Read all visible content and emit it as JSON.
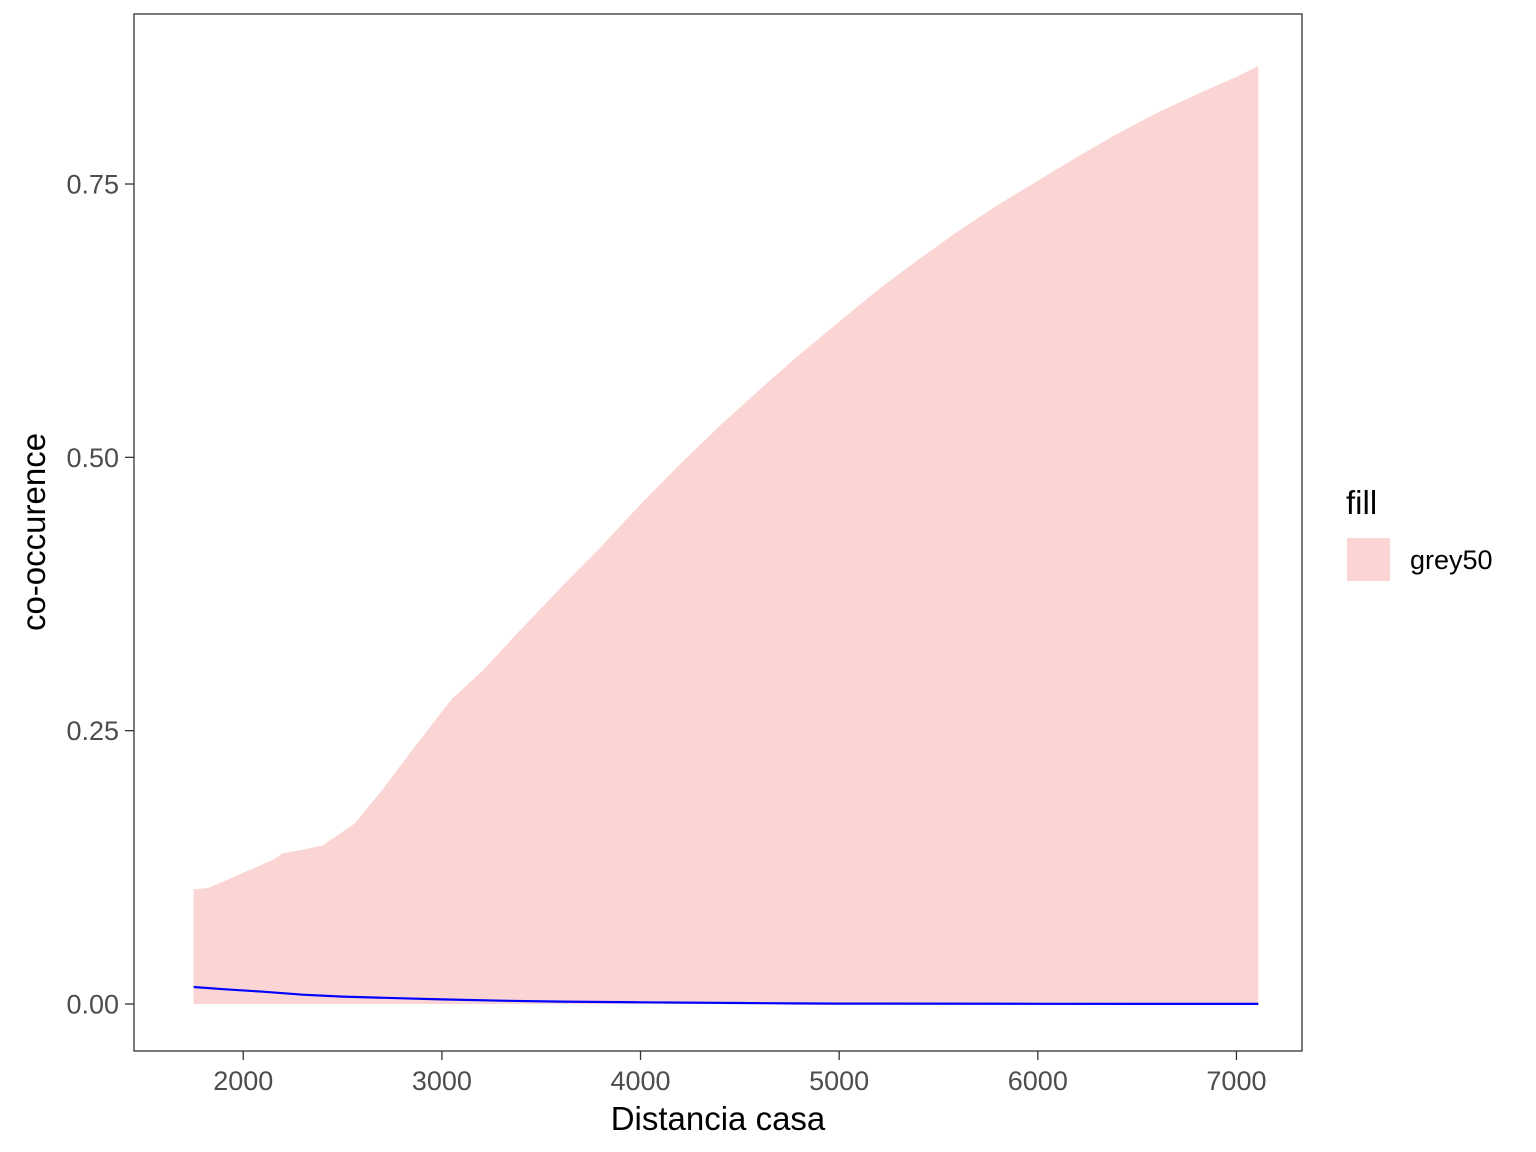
{
  "chart_data": {
    "type": "area",
    "xlabel": "Distancia casa",
    "ylabel": "co-occurence",
    "xlim": [
      1450,
      7330
    ],
    "ylim": [
      -0.043,
      0.9055
    ],
    "x_ticks": [
      2000,
      3000,
      4000,
      5000,
      6000,
      7000
    ],
    "x_tick_labels": [
      "2000",
      "3000",
      "4000",
      "5000",
      "6000",
      "7000"
    ],
    "y_ticks": [
      0.0,
      0.25,
      0.5,
      0.75
    ],
    "y_tick_labels": [
      "0.00",
      "0.25",
      "0.50",
      "0.75"
    ],
    "grid": false,
    "legend": {
      "title": "fill",
      "position": "right",
      "items": [
        {
          "label": "grey50",
          "color": "#fbd5d3"
        }
      ]
    },
    "series": [
      {
        "role": "ribbon",
        "color": "#fbd5d3",
        "x": [
          1750,
          1820,
          1900,
          2050,
          2150,
          2200,
          2300,
          2400,
          2560,
          2700,
          2850,
          3050,
          3200,
          3400,
          3600,
          3800,
          4000,
          4200,
          4400,
          4600,
          4800,
          5000,
          5200,
          5400,
          5600,
          5800,
          6000,
          6200,
          6400,
          6600,
          6800,
          7000,
          7110
        ],
        "ymin": [
          0,
          0,
          0,
          0,
          0,
          0,
          0,
          0,
          0,
          0,
          0,
          0,
          0,
          0,
          0,
          0,
          0,
          0,
          0,
          0,
          0,
          0,
          0,
          0,
          0,
          0,
          0,
          0,
          0,
          0,
          0,
          0,
          0
        ],
        "ymax": [
          0.105,
          0.106,
          0.112,
          0.124,
          0.132,
          0.138,
          0.141,
          0.145,
          0.165,
          0.196,
          0.232,
          0.279,
          0.304,
          0.343,
          0.381,
          0.418,
          0.457,
          0.494,
          0.529,
          0.562,
          0.594,
          0.624,
          0.654,
          0.681,
          0.707,
          0.731,
          0.753,
          0.775,
          0.796,
          0.815,
          0.832,
          0.848,
          0.858
        ]
      },
      {
        "role": "line",
        "color": "#0000ff",
        "x": [
          1750,
          1900,
          2100,
          2300,
          2500,
          2800,
          3000,
          3300,
          3600,
          4000,
          4500,
          4750,
          5000,
          6000,
          7110
        ],
        "y": [
          0.0155,
          0.0135,
          0.0112,
          0.0085,
          0.0068,
          0.0052,
          0.0042,
          0.003,
          0.0022,
          0.0015,
          0.0009,
          0.0005,
          0.0004,
          0.0002,
          0.0001
        ]
      }
    ]
  }
}
